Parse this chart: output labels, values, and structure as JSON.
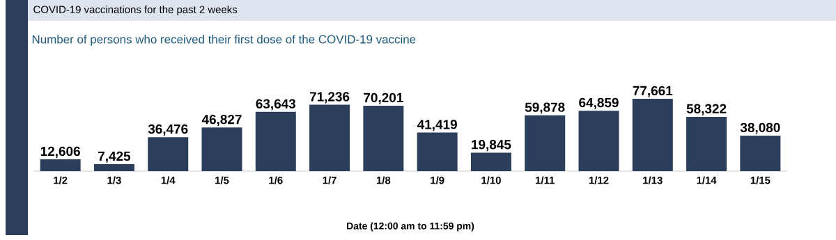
{
  "chart_data": {
    "type": "bar",
    "title": "COVID-19 vaccinations for the past 2 weeks",
    "subtitle": "Number of persons who received their first dose of the COVID-19 vaccine",
    "xlabel": "Date (12:00 am to 11:59 pm)",
    "categories": [
      "1/2",
      "1/3",
      "1/4",
      "1/5",
      "1/6",
      "1/7",
      "1/8",
      "1/9",
      "1/10",
      "1/11",
      "1/12",
      "1/13",
      "1/14",
      "1/15"
    ],
    "values": [
      12606,
      7425,
      36476,
      46827,
      63643,
      71236,
      70201,
      41419,
      19845,
      59878,
      64859,
      77661,
      58322,
      38080
    ],
    "value_labels": [
      "12,606",
      "7,425",
      "36,476",
      "46,827",
      "63,643",
      "71,236",
      "70,201",
      "41,419",
      "19,845",
      "59,878",
      "64,859",
      "77,661",
      "58,322",
      "38,080"
    ],
    "color": "#2b3f5c"
  }
}
